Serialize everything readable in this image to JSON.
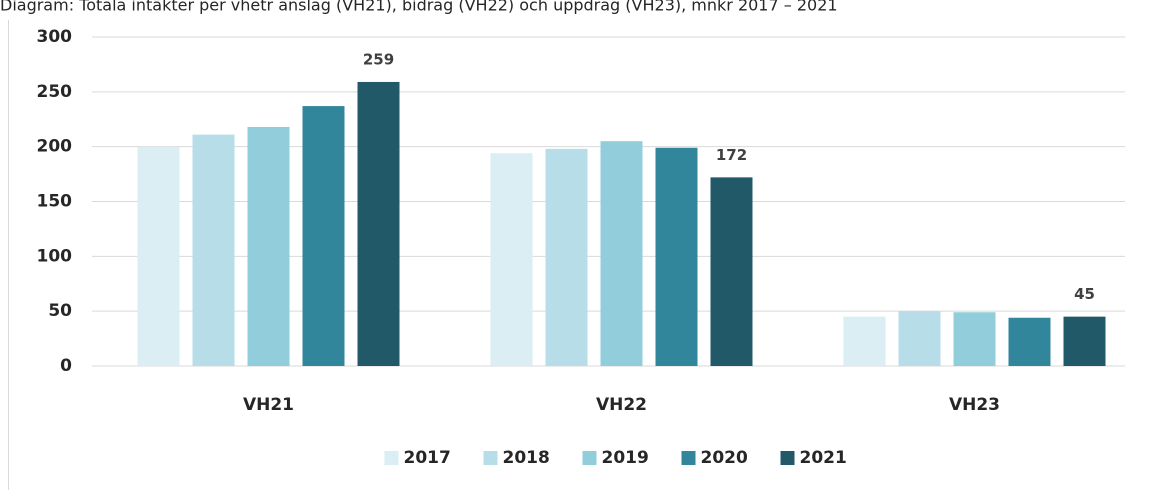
{
  "chart_data": {
    "type": "bar",
    "title": "Diagram: Totala intäkter per vhetr anslag (VH21), bidrag (VH22) och uppdrag (VH23), mnkr 2017 – 2021",
    "categories": [
      "VH21",
      "VH22",
      "VH23"
    ],
    "series": [
      {
        "name": "2017",
        "color": "#daeef3",
        "values": [
          200,
          194,
          45
        ]
      },
      {
        "name": "2018",
        "color": "#b7dde8",
        "values": [
          211,
          198,
          50
        ]
      },
      {
        "name": "2019",
        "color": "#92cddc",
        "values": [
          218,
          205,
          49
        ]
      },
      {
        "name": "2020",
        "color": "#31869b",
        "values": [
          237,
          199,
          44
        ]
      },
      {
        "name": "2021",
        "color": "#215968",
        "values": [
          259,
          172,
          45
        ],
        "data_labels": true
      }
    ],
    "ylim": [
      0,
      300
    ],
    "yticks": [
      0,
      50,
      100,
      150,
      200,
      250,
      300
    ],
    "grid": true,
    "legend": "bottom"
  }
}
